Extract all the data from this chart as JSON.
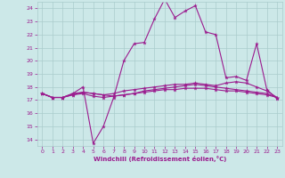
{
  "xlabel": "Windchill (Refroidissement éolien,°C)",
  "bg_color": "#cce8e8",
  "line_color": "#9b1b8e",
  "grid_color": "#aacccc",
  "xlim": [
    -0.5,
    23.5
  ],
  "ylim": [
    13.5,
    24.5
  ],
  "xticks": [
    0,
    1,
    2,
    3,
    4,
    5,
    6,
    7,
    8,
    9,
    10,
    11,
    12,
    13,
    14,
    15,
    16,
    17,
    18,
    19,
    20,
    21,
    22,
    23
  ],
  "yticks": [
    14,
    15,
    16,
    17,
    18,
    19,
    20,
    21,
    22,
    23,
    24
  ],
  "series": [
    {
      "x": [
        0,
        1,
        2,
        3,
        4,
        5,
        6,
        7,
        8,
        9,
        10,
        11,
        12,
        13,
        14,
        15,
        16,
        17,
        18,
        19,
        20,
        21,
        22,
        23
      ],
      "y": [
        17.5,
        17.2,
        17.2,
        17.5,
        18.0,
        13.7,
        15.0,
        17.2,
        20.0,
        21.3,
        21.4,
        23.2,
        24.7,
        23.3,
        23.8,
        24.2,
        22.2,
        22.0,
        18.7,
        18.8,
        18.5,
        21.3,
        17.8,
        17.1
      ]
    },
    {
      "x": [
        0,
        1,
        2,
        3,
        4,
        5,
        6,
        7,
        8,
        9,
        10,
        11,
        12,
        13,
        14,
        15,
        16,
        17,
        18,
        19,
        20,
        21,
        22,
        23
      ],
      "y": [
        17.5,
        17.2,
        17.2,
        17.4,
        17.6,
        17.5,
        17.4,
        17.5,
        17.7,
        17.8,
        17.9,
        18.0,
        18.1,
        18.2,
        18.2,
        18.3,
        18.2,
        18.1,
        18.3,
        18.4,
        18.3,
        18.0,
        17.7,
        17.2
      ]
    },
    {
      "x": [
        0,
        1,
        2,
        3,
        4,
        5,
        6,
        7,
        8,
        9,
        10,
        11,
        12,
        13,
        14,
        15,
        16,
        17,
        18,
        19,
        20,
        21,
        22,
        23
      ],
      "y": [
        17.5,
        17.2,
        17.2,
        17.4,
        17.5,
        17.3,
        17.2,
        17.3,
        17.4,
        17.5,
        17.6,
        17.7,
        17.8,
        17.8,
        17.9,
        17.9,
        17.9,
        17.8,
        17.7,
        17.7,
        17.6,
        17.5,
        17.4,
        17.2
      ]
    },
    {
      "x": [
        0,
        1,
        2,
        3,
        4,
        5,
        6,
        7,
        8,
        9,
        10,
        11,
        12,
        13,
        14,
        15,
        16,
        17,
        18,
        19,
        20,
        21,
        22,
        23
      ],
      "y": [
        17.5,
        17.2,
        17.2,
        17.5,
        17.6,
        17.5,
        17.4,
        17.3,
        17.4,
        17.5,
        17.7,
        17.8,
        17.9,
        18.0,
        18.1,
        18.2,
        18.1,
        18.0,
        17.9,
        17.8,
        17.7,
        17.6,
        17.5,
        17.2
      ]
    }
  ]
}
